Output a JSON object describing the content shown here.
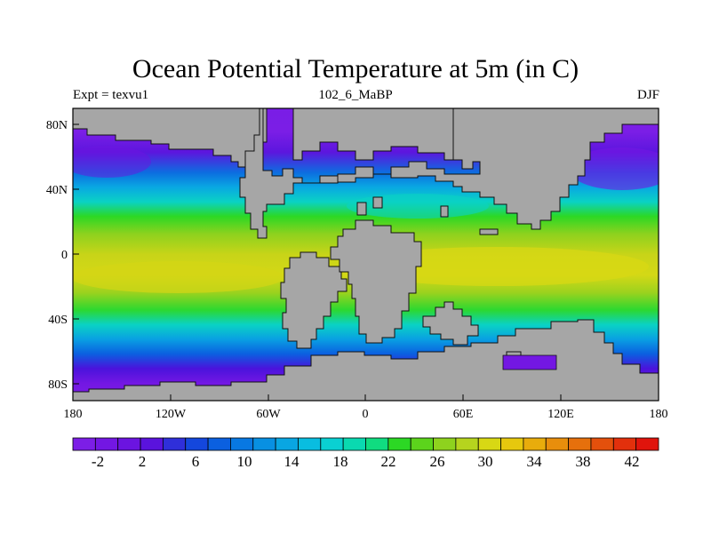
{
  "title": "Ocean Potential Temperature at 5m (in C)",
  "left_label": "Expt = texvu1",
  "center_label": "102_6_MaBP",
  "right_label": "DJF",
  "x_ticks": [
    "180",
    "120W",
    "60W",
    "0",
    "60E",
    "120E",
    "180"
  ],
  "y_ticks": [
    "80N",
    "40N",
    "0",
    "40S",
    "80S"
  ],
  "colorbar": {
    "labels": [
      "-2",
      "2",
      "6",
      "10",
      "14",
      "18",
      "22",
      "26",
      "30",
      "34",
      "38",
      "42"
    ],
    "colors": [
      "#7c1ee6",
      "#7317e3",
      "#6b14e0",
      "#5a13dd",
      "#2f2fda",
      "#1447dd",
      "#0b60e0",
      "#0878e2",
      "#0890e2",
      "#09a6e2",
      "#09bde0",
      "#0ad0d2",
      "#0ad9b0",
      "#10dc80",
      "#2cd824",
      "#5cd41c",
      "#8ed21e",
      "#b6d41e",
      "#d8d814",
      "#e6c80e",
      "#e8ac0c",
      "#e88e0c",
      "#e6700c",
      "#e4500c",
      "#e2300c",
      "#e0140c"
    ]
  },
  "map": {
    "type": "filled-contour",
    "variable": "ocean potential temperature at 5m",
    "units": "C",
    "x_range": [
      -180,
      180
    ],
    "y_range": [
      -90,
      90
    ],
    "land_color": "#a6a6a6"
  }
}
